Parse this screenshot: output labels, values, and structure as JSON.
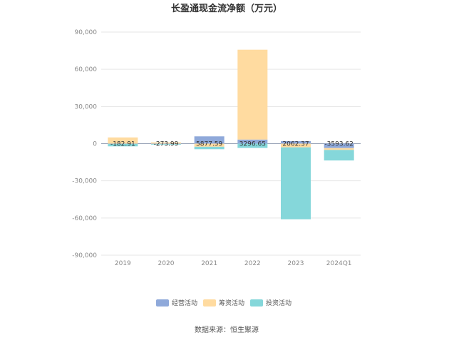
{
  "chart_data": {
    "type": "bar",
    "stacked": true,
    "title": "长盈通现金流净额（万元）",
    "categories": [
      "2019",
      "2020",
      "2021",
      "2022",
      "2023",
      "2024Q1"
    ],
    "y_ticks": [
      "90,000",
      "60,000",
      "30,000",
      "0",
      "-30,000",
      "-60,000",
      "-90,000"
    ],
    "ylim": [
      -90000,
      90000
    ],
    "grid": true,
    "legend_position": "bottom",
    "series": [
      {
        "name": "经营活动",
        "color": "#8fa9da",
        "values": [
          -182.91,
          -273.99,
          5877.59,
          3296.65,
          2062.37,
          -3593.62
        ]
      },
      {
        "name": "筹资活动",
        "color": "#ffdba0",
        "values": [
          5000,
          1000,
          -2500,
          72500,
          -3000,
          -1500
        ]
      },
      {
        "name": "投资活动",
        "color": "#85d7da",
        "values": [
          -2000,
          -500,
          -2000,
          -3500,
          -58000,
          -8500
        ]
      }
    ],
    "data_labels": [
      "-182.91",
      "-273.99",
      "5877.59",
      "3296.65",
      "2062.37",
      "-3593.62"
    ]
  },
  "source": "数据来源：恒生聚源"
}
